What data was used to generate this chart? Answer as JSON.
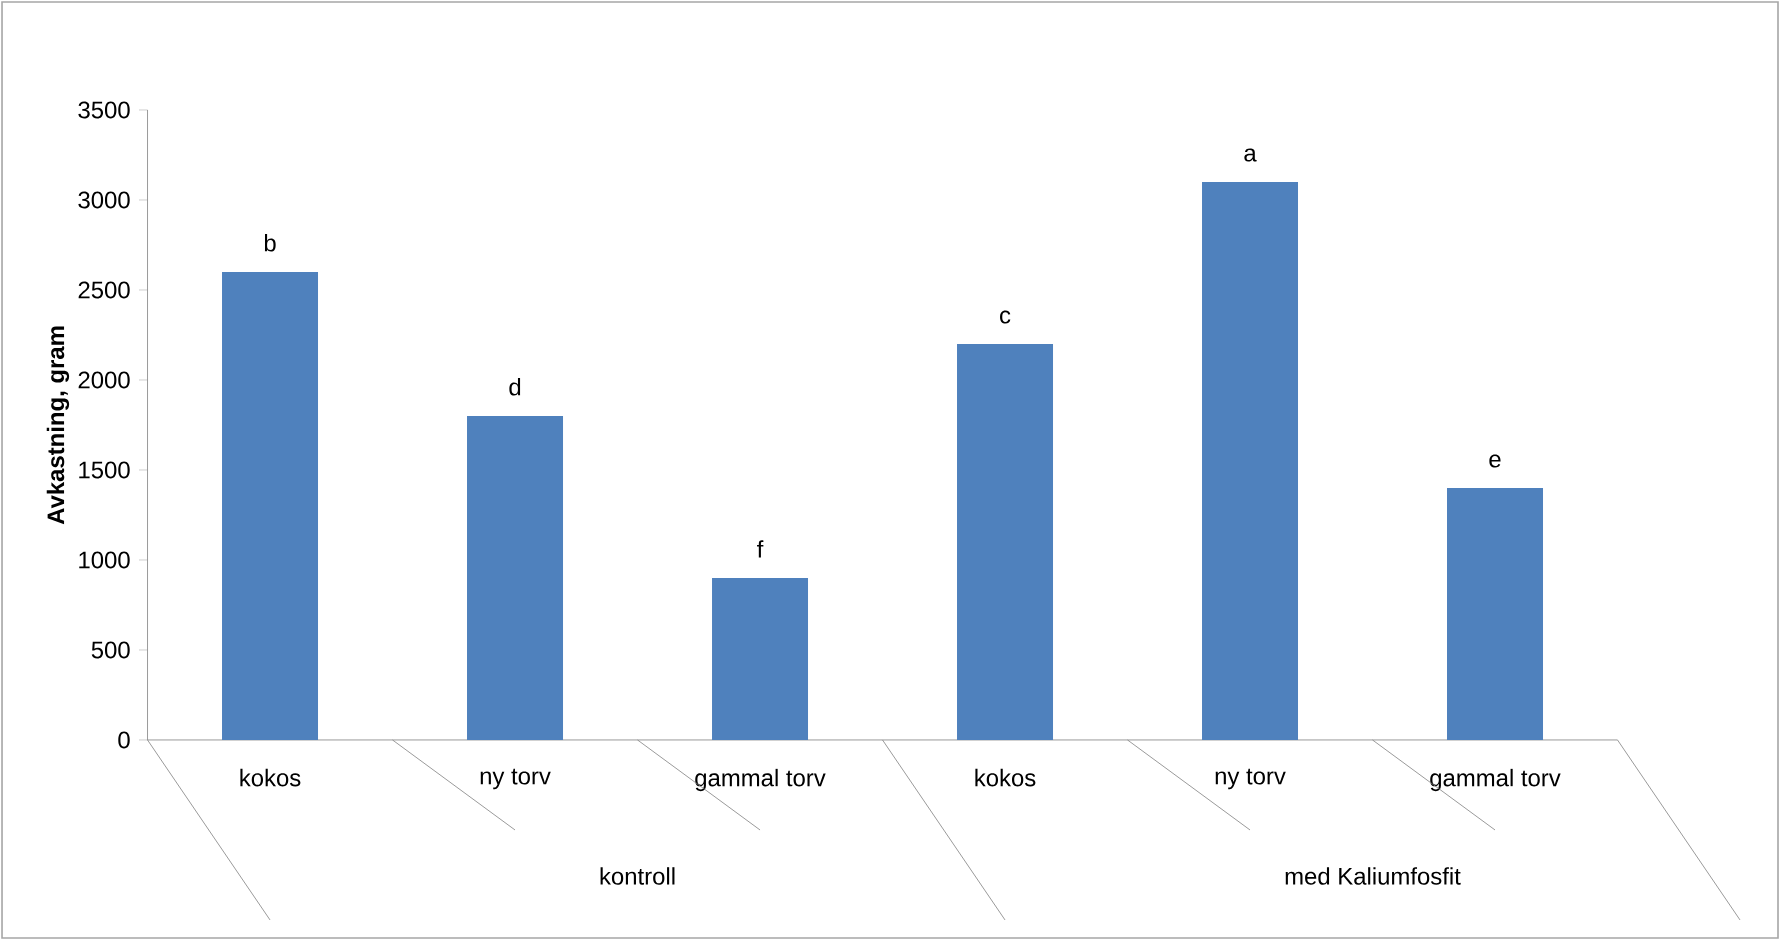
{
  "chart_data": {
    "type": "bar",
    "ylabel": "Avkastning, gram",
    "categories": [
      "kokos",
      "ny torv",
      "gammal torv",
      "kokos",
      "ny torv",
      "gammal torv"
    ],
    "values": [
      2600,
      1800,
      900,
      2200,
      3100,
      1400
    ],
    "value_labels": [
      "b",
      "d",
      "f",
      "c",
      "a",
      "e"
    ],
    "color": "#4f81bd",
    "ylim": [
      0,
      3500
    ],
    "yticks": [
      0,
      500,
      1000,
      1500,
      2000,
      2500,
      3000,
      3500
    ],
    "annotations": [
      "kontroll",
      "med Kaliumfosfit"
    ]
  }
}
